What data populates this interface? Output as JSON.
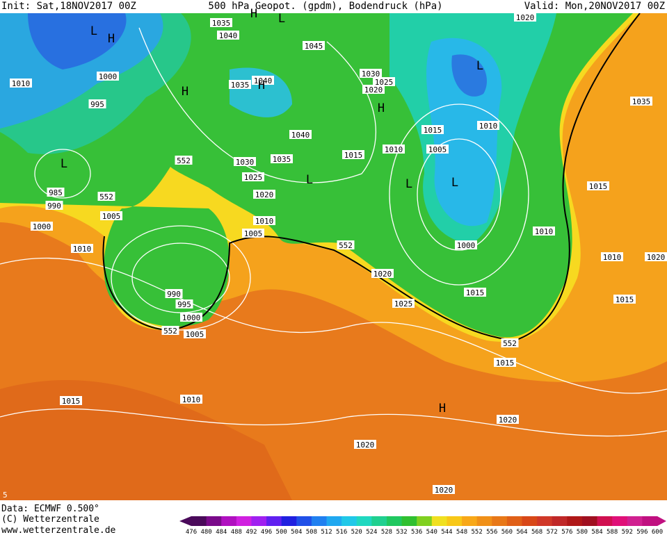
{
  "header": {
    "init": "Init: Sat,18NOV2017 00Z",
    "title": "500 hPa Geopot. (gpdm), Bodendruck (hPa)",
    "valid": "Valid: Mon,20NOV2017 00Z"
  },
  "map": {
    "isobar_labels": [
      "1010",
      "1000",
      "995",
      "985",
      "990",
      "1000",
      "1005",
      "1010",
      "552",
      "552",
      "1030",
      "1025",
      "1020",
      "1035",
      "1040",
      "1035",
      "1040",
      "1040",
      "1035",
      "1045",
      "1030",
      "1025",
      "1020",
      "1015",
      "1010",
      "1005",
      "1015",
      "1010",
      "1000",
      "1010",
      "1035",
      "1020",
      "1015",
      "1010",
      "1020",
      "1015",
      "1015",
      "552",
      "1010",
      "1005",
      "1020",
      "1025",
      "552",
      "1015",
      "990",
      "995",
      "1000",
      "552",
      "1005",
      "1010",
      "1015",
      "1020",
      "1020",
      "1020"
    ],
    "pressure_centers": [
      "H",
      "H",
      "H",
      "H",
      "H",
      "H",
      "L",
      "L",
      "L",
      "L",
      "L",
      "L",
      "L"
    ],
    "corner_mark": "5"
  },
  "footer": {
    "data": "Data: ECMWF  0.500°",
    "copyright": "(C) Wetterzentrale",
    "url": "www.wetterzentrale.de"
  },
  "legend": {
    "levels": [
      476,
      480,
      484,
      488,
      492,
      496,
      500,
      504,
      508,
      512,
      516,
      520,
      524,
      528,
      532,
      536,
      540,
      544,
      548,
      552,
      556,
      560,
      564,
      568,
      572,
      576,
      580,
      584,
      588,
      592,
      596,
      600
    ]
  }
}
